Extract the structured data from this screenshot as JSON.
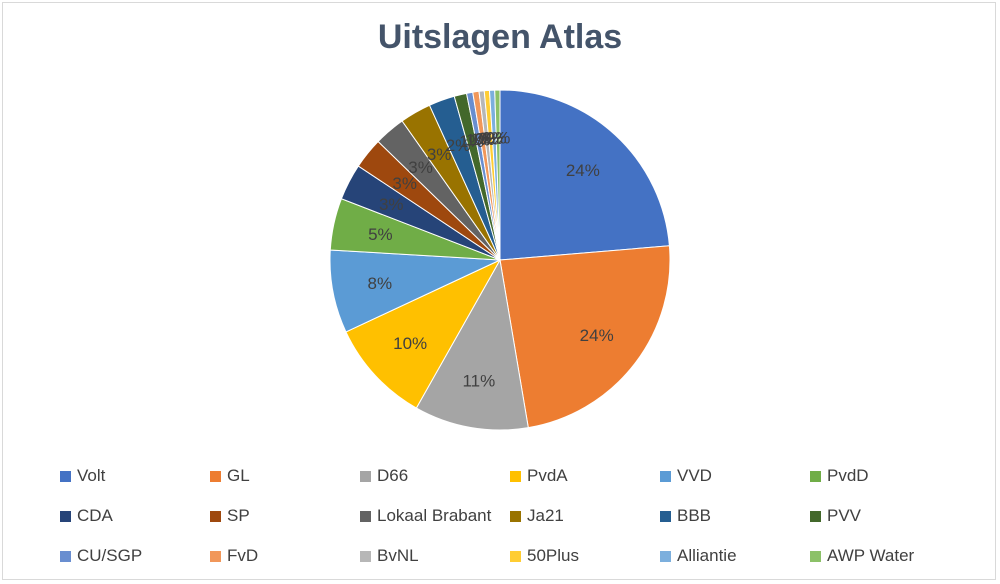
{
  "chart_data": {
    "type": "pie",
    "title": "Uitslagen Atlas",
    "legend_position": "bottom",
    "slices": [
      {
        "name": "Volt",
        "value": 24,
        "label": "24%",
        "color": "#4472c4"
      },
      {
        "name": "GL",
        "value": 24,
        "label": "24%",
        "color": "#ed7d31"
      },
      {
        "name": "D66",
        "value": 11,
        "label": "11%",
        "color": "#a5a5a5"
      },
      {
        "name": "PvdA",
        "value": 10,
        "label": "10%",
        "color": "#ffc000"
      },
      {
        "name": "VVD",
        "value": 8,
        "label": "8%",
        "color": "#5b9bd5"
      },
      {
        "name": "PvdD",
        "value": 5,
        "label": "5%",
        "color": "#70ad47"
      },
      {
        "name": "CDA",
        "value": 3.5,
        "label": "3%",
        "color": "#264478"
      },
      {
        "name": "SP",
        "value": 3,
        "label": "3%",
        "color": "#9e480e"
      },
      {
        "name": "Lokaal Brabant",
        "value": 3,
        "label": "3%",
        "color": "#636363"
      },
      {
        "name": "Ja21",
        "value": 3,
        "label": "3%",
        "color": "#997300"
      },
      {
        "name": "BBB",
        "value": 2.5,
        "label": "2%",
        "color": "#255e91"
      },
      {
        "name": "PVV",
        "value": 1.2,
        "label": "1%",
        "color": "#43682b"
      },
      {
        "name": "CU/SGP",
        "value": 0.6,
        "label": "1%",
        "color": "#698ed0"
      },
      {
        "name": "FvD",
        "value": 0.6,
        "label": "1%",
        "color": "#f1975a"
      },
      {
        "name": "BvNL",
        "value": 0.5,
        "label": "0%",
        "color": "#b7b7b7"
      },
      {
        "name": "50Plus",
        "value": 0.5,
        "label": "0%",
        "color": "#ffcd33"
      },
      {
        "name": "Alliantie",
        "value": 0.5,
        "label": "0%",
        "color": "#7cafdd"
      },
      {
        "name": "AWP Water",
        "value": 0.5,
        "label": "0%",
        "color": "#8cc168"
      }
    ]
  }
}
